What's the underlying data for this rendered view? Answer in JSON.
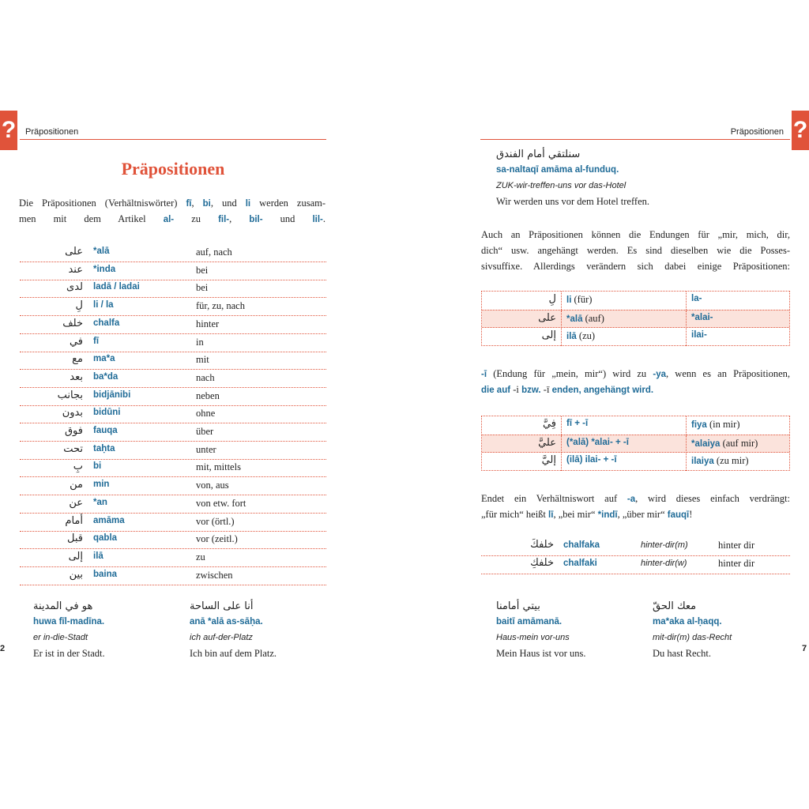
{
  "left_page": {
    "header": "Präpositionen",
    "tab": "?",
    "title": "Präpositionen",
    "intro": [
      [
        "Die Präpositionen (Verhältniswörter) ",
        "fī",
        ", ",
        "bi",
        ", und ",
        "li",
        " werden zusam-"
      ],
      [
        "men mit dem Artikel ",
        "al-",
        " zu ",
        "fil-",
        ", ",
        "bil-",
        " und ",
        "lil-",
        "."
      ]
    ],
    "rows": [
      [
        "على",
        "*alā",
        "auf, nach"
      ],
      [
        "عند",
        "*inda",
        "bei"
      ],
      [
        "لدى",
        "ladā / ladai",
        "bei"
      ],
      [
        "لِ",
        "li / la",
        "für, zu, nach"
      ],
      [
        "خلف",
        "chalfa",
        "hinter"
      ],
      [
        "في",
        "fī",
        "in"
      ],
      [
        "مع",
        "ma*a",
        "mit"
      ],
      [
        "بعد",
        "ba*da",
        "nach"
      ],
      [
        "بجانب",
        "bidjānibi",
        "neben"
      ],
      [
        "بدون",
        "bidūni",
        "ohne"
      ],
      [
        "فوق",
        "fauqa",
        "über"
      ],
      [
        "تحت",
        "taḥta",
        "unter"
      ],
      [
        "بِ",
        "bi",
        "mit, mittels"
      ],
      [
        "من",
        "min",
        "von, aus"
      ],
      [
        "عن",
        "*an",
        "von etw. fort"
      ],
      [
        "أمام",
        "amāma",
        "vor (örtl.)"
      ],
      [
        "قبل",
        "qabla",
        "vor (zeitl.)"
      ],
      [
        "إلى",
        "ilā",
        "zu"
      ],
      [
        "بين",
        "baina",
        "zwischen"
      ]
    ],
    "examples": [
      {
        "arabic": "هو في المدينة",
        "translit": "huwa fīl-madīna.",
        "gloss": "er in-die-Stadt",
        "translation": "Er ist in der Stadt."
      },
      {
        "arabic": "أنا على الساحة",
        "translit": "anā *alā as-sāḥa.",
        "gloss": "ich auf-der-Platz",
        "translation": "Ich bin auf dem Platz."
      }
    ],
    "page_number": "2"
  },
  "right_page": {
    "header": "Präpositionen",
    "tab": "?",
    "top_example": {
      "arabic": "سنلتقي أمام الفندق",
      "translit": "sa-naltaqī amāma al-funduq.",
      "gloss": "ZUK-wir-treffen-uns vor das-Hotel",
      "translation": "Wir werden uns vor dem Hotel treffen."
    },
    "paragraph1": [
      "Auch an Präpositionen können die Endungen für „mir, mich, dir,",
      "dich“ usw. angehängt werden. Es sind dieselben wie die Posses-",
      "sivsuffixe. Allerdings verändern sich dabei einige Präpositionen:"
    ],
    "table1": [
      [
        "لِ",
        [
          "li",
          " (für)"
        ],
        "la-"
      ],
      [
        "على",
        [
          "*alā",
          " (auf)"
        ],
        "*alai-"
      ],
      [
        "إلى",
        [
          "ilā",
          " (zu)"
        ],
        "ilai-"
      ]
    ],
    "paragraph2": [
      [
        "-ī",
        " (Endung für „mein, mir“) wird zu ",
        "-ya",
        ", wenn es an Präpositionen,"
      ],
      [
        "die auf ",
        "-i",
        " bzw. ",
        "-ī",
        " enden, angehängt wird."
      ]
    ],
    "table2": [
      [
        "فِيَّ",
        "fī + -ī",
        [
          "fiya",
          " (in mir)"
        ]
      ],
      [
        "عليَّ",
        "(*alā) *alai- + -ī",
        [
          "*alaiya",
          " (auf mir)"
        ]
      ],
      [
        "إليَّ",
        "(ilā) ilai- + -ī",
        [
          "ilaiya",
          " (zu mir)"
        ]
      ]
    ],
    "paragraph3": [
      [
        "Endet ein Verhältniswort auf ",
        "-a",
        ", wird dieses einfach verdrängt:"
      ],
      [
        "„für mich“ heißt ",
        "lī",
        ", „bei mir“ ",
        "*indī",
        ", „über mir“ ",
        "fauqī",
        "!"
      ]
    ],
    "table3": [
      [
        "خلفكَ",
        "chalfaka",
        "hinter-dir(m)",
        "hinter dir"
      ],
      [
        "خلفكِ",
        "chalfaki",
        "hinter-dir(w)",
        "hinter dir"
      ]
    ],
    "examples": [
      {
        "arabic": "بيتي أمامنا",
        "translit": "baitī amāmanā.",
        "gloss": "Haus-mein vor-uns",
        "translation": "Mein Haus ist vor uns."
      },
      {
        "arabic": "معك الحقّ",
        "translit": "ma*aka al-ḥaqq.",
        "gloss": "mit-dir(m) das-Recht",
        "translation": "Du hast Recht."
      }
    ],
    "page_number": "7"
  }
}
